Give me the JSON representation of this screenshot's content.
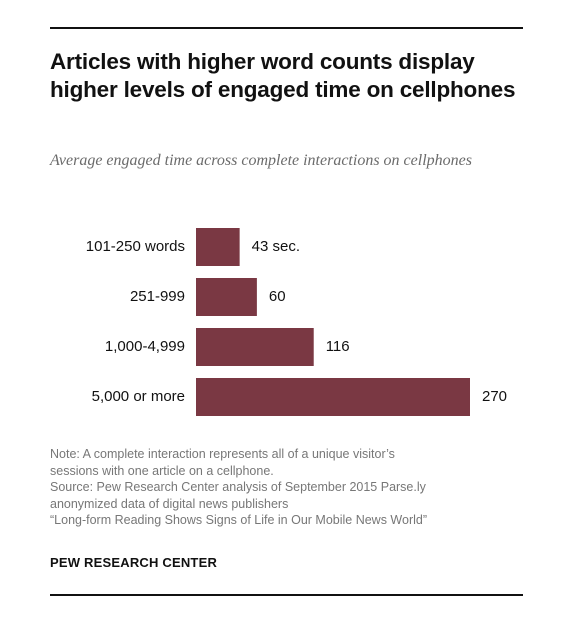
{
  "title": "Articles with higher word counts display higher levels of engaged time on cellphones",
  "subtitle": "Average engaged time across complete interactions on cellphones",
  "notes": {
    "note_line1": "Note: A complete interaction represents all of a unique visitor’s",
    "note_line2": "sessions with one article on a cellphone.",
    "source_line1": "Source: Pew Research Center analysis of September 2015 Parse.ly",
    "source_line2": "anonymized data of digital news publishers",
    "source_line3": "“Long-form Reading Shows Signs of Life in Our Mobile News World”"
  },
  "brand": "PEW RESEARCH CENTER",
  "colors": {
    "bar": "#7a3843",
    "label": "#111111"
  },
  "chart_data": {
    "type": "bar",
    "orientation": "horizontal",
    "categories": [
      "101-250 words",
      "251-999",
      "1,000-4,999",
      "5,000 or more"
    ],
    "values": [
      43,
      60,
      116,
      270
    ],
    "value_labels": [
      "43 sec.",
      "60",
      "116",
      "270"
    ],
    "title": "",
    "xlabel": "",
    "ylabel": "",
    "xlim": [
      0,
      270
    ],
    "grid": false,
    "legend": "none"
  }
}
